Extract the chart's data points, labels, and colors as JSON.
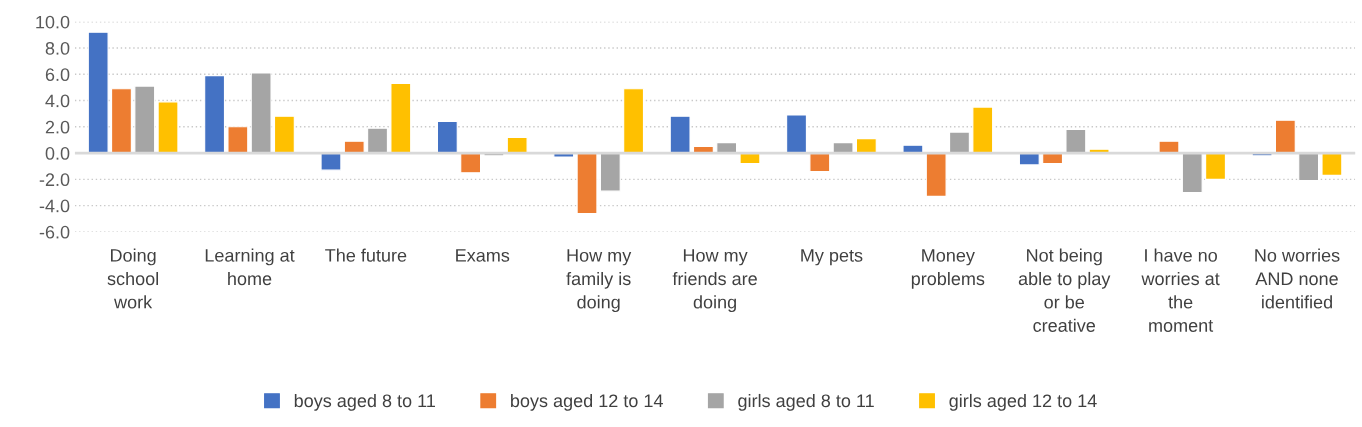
{
  "chart_data": {
    "type": "bar",
    "categories": [
      "Doing\nschool\nwork",
      "Learning at\nhome",
      "The future",
      "Exams",
      "How my\nfamily is\ndoing",
      "How my\nfriends are\ndoing",
      "My pets",
      "Money\nproblems",
      "Not being\nable to play\nor be\ncreative",
      "I have no\nworries at\nthe\nmoment",
      "No worries\nAND none\nidentified"
    ],
    "series": [
      {
        "name": "boys aged 8 to 11",
        "color": "#4472c4",
        "values": [
          9.2,
          5.9,
          -1.3,
          2.4,
          -0.3,
          2.8,
          2.9,
          0.6,
          -0.9,
          null,
          -0.2
        ]
      },
      {
        "name": "boys aged 12 to 14",
        "color": "#ed7d31",
        "values": [
          4.9,
          2.0,
          0.9,
          -1.5,
          -4.6,
          0.5,
          -1.4,
          -3.3,
          -0.8,
          0.9,
          2.5
        ]
      },
      {
        "name": "girls aged 8 to 11",
        "color": "#a5a5a5",
        "values": [
          5.1,
          6.1,
          1.9,
          -0.2,
          -2.9,
          0.8,
          0.8,
          1.6,
          1.8,
          -3.0,
          -2.1
        ]
      },
      {
        "name": "girls aged 12 to 14",
        "color": "#ffc000",
        "values": [
          3.9,
          2.8,
          5.3,
          1.2,
          4.9,
          -0.8,
          1.1,
          3.5,
          0.3,
          -2.0,
          -1.7
        ]
      }
    ],
    "ylim": [
      -6,
      10
    ],
    "yticks": [
      {
        "value": -6,
        "label": "-6.0"
      },
      {
        "value": -4,
        "label": "-4.0"
      },
      {
        "value": -2,
        "label": "-2.0"
      },
      {
        "value": 0,
        "label": "0.0"
      },
      {
        "value": 2,
        "label": "2.0"
      },
      {
        "value": 4,
        "label": "4.0"
      },
      {
        "value": 6,
        "label": "6.0"
      },
      {
        "value": 8,
        "label": "8.0"
      },
      {
        "value": 10,
        "label": "10.0"
      }
    ],
    "grid": "y",
    "legend": "bottom"
  }
}
